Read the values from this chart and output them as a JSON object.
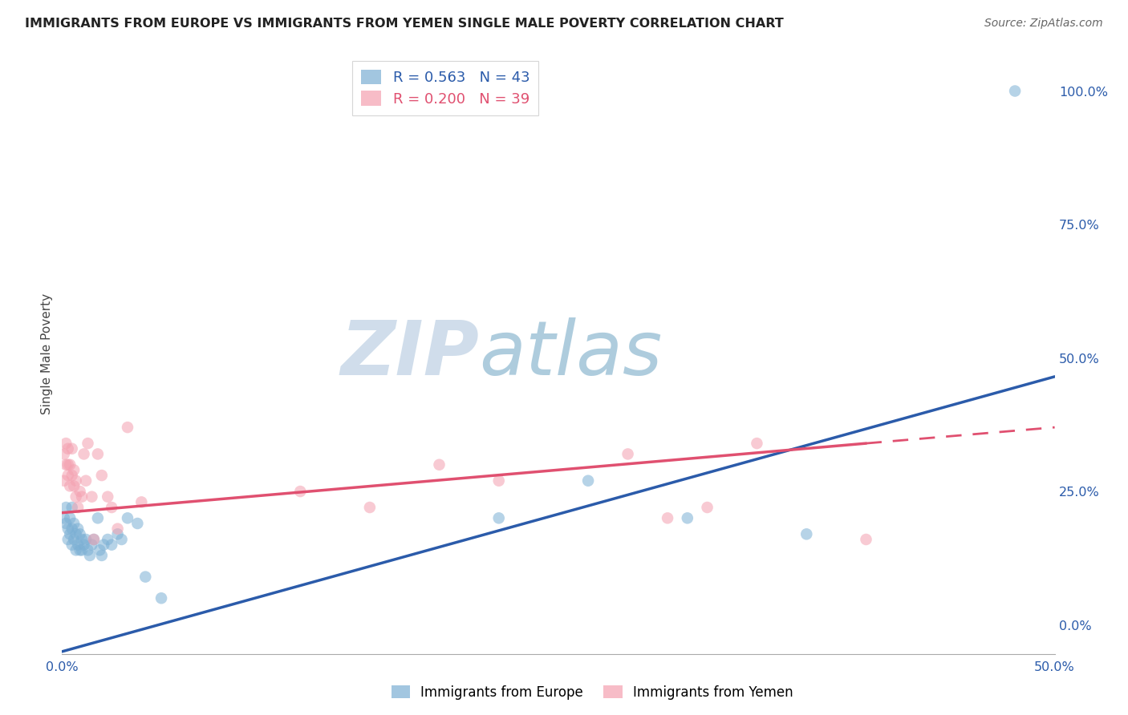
{
  "title": "IMMIGRANTS FROM EUROPE VS IMMIGRANTS FROM YEMEN SINGLE MALE POVERTY CORRELATION CHART",
  "source": "Source: ZipAtlas.com",
  "ylabel": "Single Male Poverty",
  "xlim": [
    0.0,
    0.5
  ],
  "ylim": [
    -0.055,
    1.07
  ],
  "ytick_vals": [
    0.0,
    0.25,
    0.5,
    0.75,
    1.0
  ],
  "ytick_labels": [
    "0.0%",
    "25.0%",
    "50.0%",
    "75.0%",
    "100.0%"
  ],
  "xtick_vals": [
    0.0,
    0.1,
    0.2,
    0.3,
    0.4,
    0.5
  ],
  "xtick_labels": [
    "0.0%",
    "",
    "",
    "",
    "",
    "50.0%"
  ],
  "legend_R_europe": "R = 0.563",
  "legend_N_europe": "N = 43",
  "legend_R_yemen": "R = 0.200",
  "legend_N_yemen": "N = 39",
  "color_europe": "#7BAFD4",
  "color_yemen": "#F4A0B0",
  "trendline_europe_color": "#2B5BAA",
  "trendline_yemen_color": "#E05070",
  "background": "#FFFFFF",
  "europe_x": [
    0.001,
    0.002,
    0.002,
    0.003,
    0.003,
    0.004,
    0.004,
    0.005,
    0.005,
    0.005,
    0.006,
    0.006,
    0.007,
    0.007,
    0.008,
    0.008,
    0.009,
    0.009,
    0.01,
    0.01,
    0.011,
    0.012,
    0.013,
    0.014,
    0.015,
    0.016,
    0.018,
    0.019,
    0.02,
    0.021,
    0.023,
    0.025,
    0.028,
    0.03,
    0.033,
    0.038,
    0.042,
    0.05,
    0.22,
    0.265,
    0.315,
    0.375,
    0.48
  ],
  "europe_y": [
    0.2,
    0.22,
    0.19,
    0.18,
    0.16,
    0.2,
    0.17,
    0.22,
    0.18,
    0.15,
    0.19,
    0.16,
    0.17,
    0.14,
    0.18,
    0.15,
    0.17,
    0.14,
    0.16,
    0.14,
    0.15,
    0.16,
    0.14,
    0.13,
    0.15,
    0.16,
    0.2,
    0.14,
    0.13,
    0.15,
    0.16,
    0.15,
    0.17,
    0.16,
    0.2,
    0.19,
    0.09,
    0.05,
    0.2,
    0.27,
    0.2,
    0.17,
    1.0
  ],
  "yemen_x": [
    0.001,
    0.001,
    0.002,
    0.002,
    0.003,
    0.003,
    0.003,
    0.004,
    0.004,
    0.005,
    0.005,
    0.006,
    0.006,
    0.007,
    0.007,
    0.008,
    0.009,
    0.01,
    0.011,
    0.012,
    0.013,
    0.015,
    0.016,
    0.018,
    0.02,
    0.023,
    0.025,
    0.028,
    0.033,
    0.04,
    0.12,
    0.155,
    0.19,
    0.22,
    0.285,
    0.305,
    0.325,
    0.35,
    0.405
  ],
  "yemen_y": [
    0.27,
    0.32,
    0.3,
    0.34,
    0.28,
    0.33,
    0.3,
    0.26,
    0.3,
    0.28,
    0.33,
    0.26,
    0.29,
    0.24,
    0.27,
    0.22,
    0.25,
    0.24,
    0.32,
    0.27,
    0.34,
    0.24,
    0.16,
    0.32,
    0.28,
    0.24,
    0.22,
    0.18,
    0.37,
    0.23,
    0.25,
    0.22,
    0.3,
    0.27,
    0.32,
    0.2,
    0.22,
    0.34,
    0.16
  ],
  "trendline_eu_x0": 0.0,
  "trendline_eu_y0": -0.05,
  "trendline_eu_x1": 0.5,
  "trendline_eu_y1": 0.465,
  "trendline_ye_x0": 0.0,
  "trendline_ye_y0": 0.21,
  "trendline_ye_solid_x1": 0.405,
  "trendline_ye_solid_y1": 0.34,
  "trendline_ye_dash_x1": 0.5,
  "trendline_ye_dash_y1": 0.37,
  "watermark_zip": "ZIP",
  "watermark_atlas": "atlas",
  "marker_size": 110
}
